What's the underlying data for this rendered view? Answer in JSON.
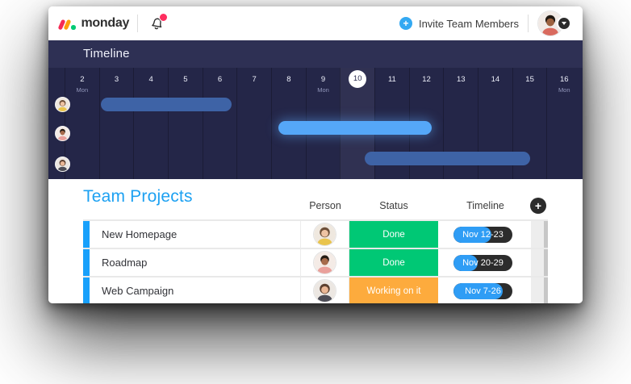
{
  "header": {
    "logo": {
      "text": "monday",
      "mark_red": "#f62b54",
      "mark_orange": "#ff9d0b",
      "mark_green": "#00ca72"
    },
    "notification_badge_color": "#ff2e5f",
    "invite": {
      "label": "Invite Team Members",
      "plus_color": "#33a9f2"
    }
  },
  "timeline": {
    "title": "Timeline",
    "theme": {
      "titlebar_bg": "#2e3054",
      "grid_bg": "#242648"
    },
    "days": [
      {
        "num": "2",
        "sub": "Mon"
      },
      {
        "num": "3",
        "sub": ""
      },
      {
        "num": "4",
        "sub": ""
      },
      {
        "num": "5",
        "sub": ""
      },
      {
        "num": "6",
        "sub": ""
      },
      {
        "num": "7",
        "sub": ""
      },
      {
        "num": "8",
        "sub": ""
      },
      {
        "num": "9",
        "sub": "Mon"
      },
      {
        "num": "10",
        "sub": ""
      },
      {
        "num": "11",
        "sub": ""
      },
      {
        "num": "12",
        "sub": ""
      },
      {
        "num": "13",
        "sub": ""
      },
      {
        "num": "14",
        "sub": ""
      },
      {
        "num": "15",
        "sub": ""
      },
      {
        "num": "16",
        "sub": "Mon"
      }
    ],
    "today_index": 8,
    "bars": [
      {
        "person": "person-1",
        "color": "#3e63a6"
      },
      {
        "person": "person-2",
        "color": "#55a7f8"
      },
      {
        "person": "person-3",
        "color": "#3e63a6"
      }
    ]
  },
  "board": {
    "title": "Team Projects",
    "title_color": "#1da1f2",
    "columns": {
      "person": "Person",
      "status": "Status",
      "timeline": "Timeline"
    },
    "add_button_label": "+",
    "accent_color": "#18a0fb",
    "pill_colors": {
      "blue": "#2f9df5",
      "dark": "#2c2c2c"
    },
    "rows": [
      {
        "name": "New Homepage",
        "status": "Done",
        "status_color": "#00c875",
        "timeline": "Nov 12-23",
        "progress_pct": 65
      },
      {
        "name": "Roadmap",
        "status": "Done",
        "status_color": "#00c875",
        "timeline": "Nov 20-29",
        "progress_pct": 41
      },
      {
        "name": "Web Campaign",
        "status": "Working on it",
        "status_color": "#fdab3d",
        "timeline": "Nov 7-26",
        "progress_pct": 84
      }
    ]
  }
}
